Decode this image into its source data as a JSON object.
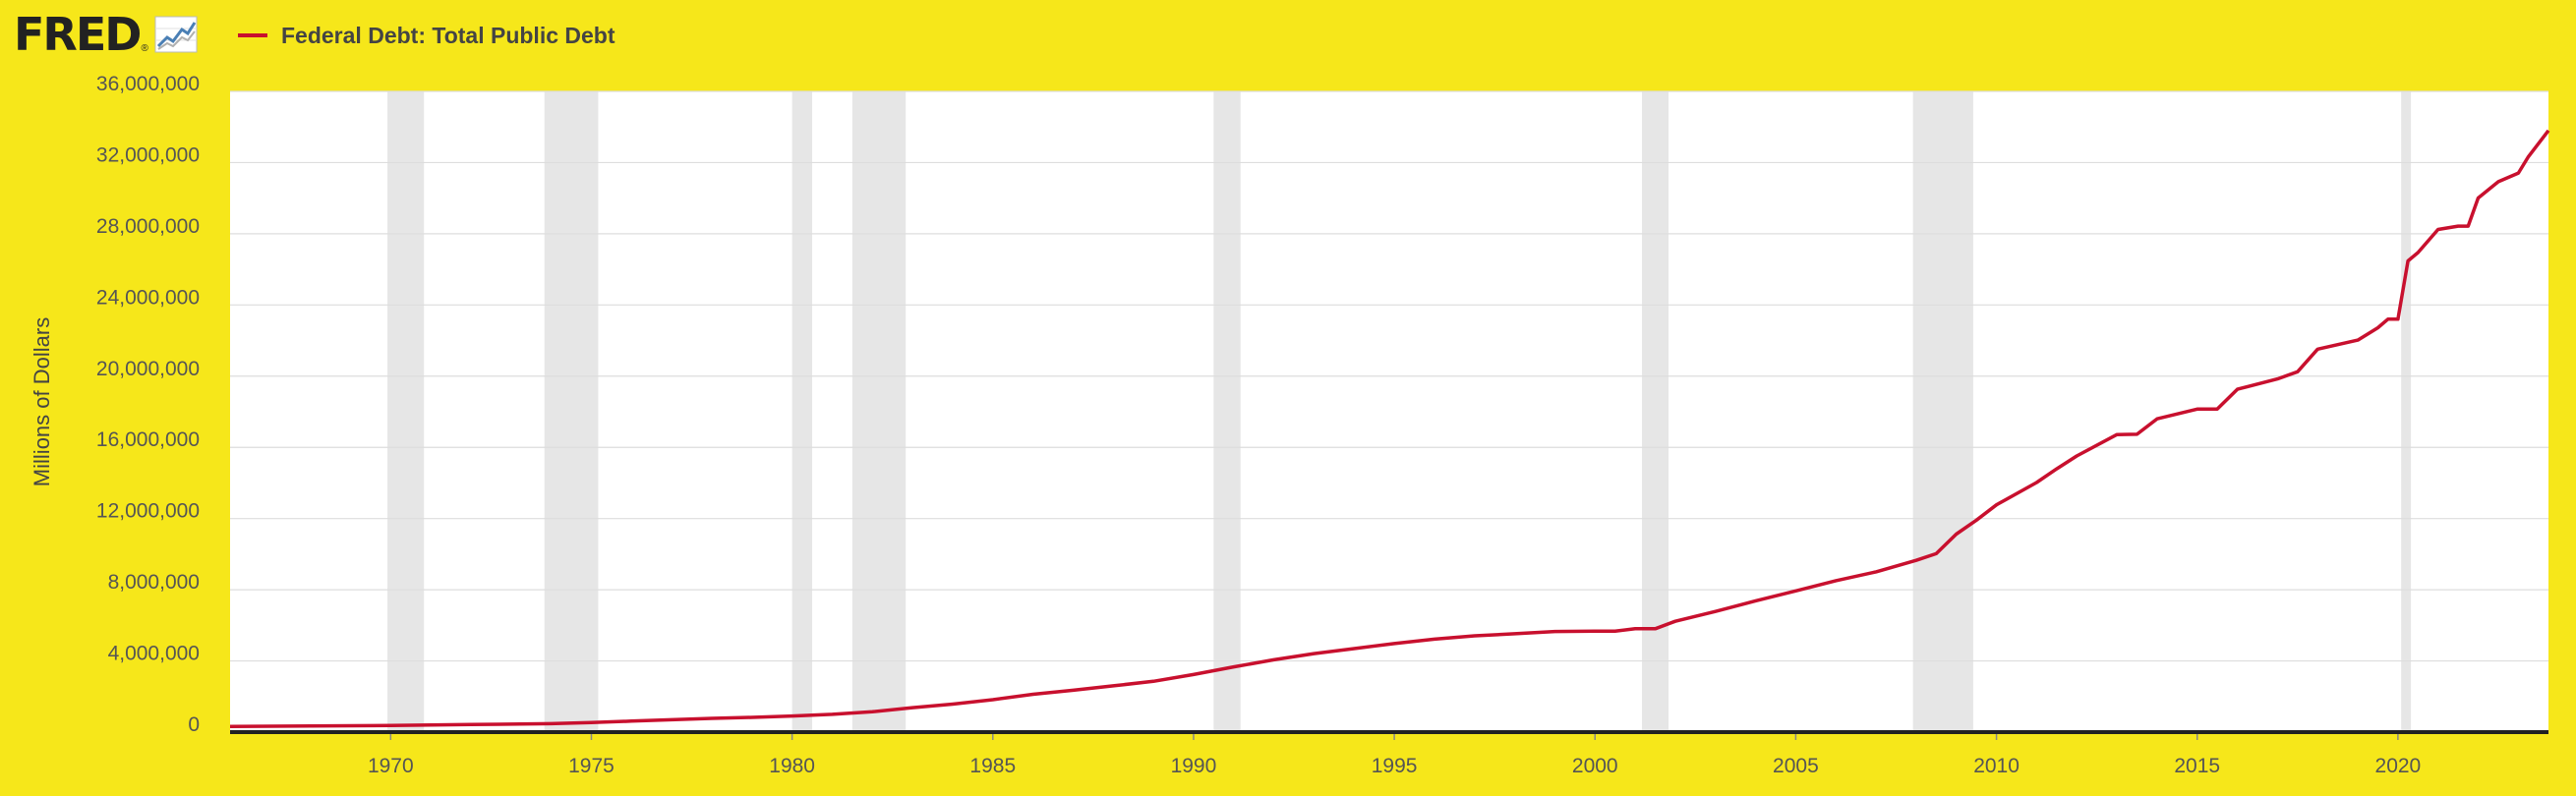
{
  "brand": {
    "logo_text": "FRED",
    "registered_mark": "®",
    "logo_icon": "chart-line-icon"
  },
  "legend": {
    "label": "Federal Debt: Total Public Debt",
    "color": "#c8102e"
  },
  "colors": {
    "background": "#f6e71a",
    "plot": "#ffffff",
    "gridline": "#dddddd",
    "recession": "#e6e6e6",
    "axis": "#222222"
  },
  "chart_data": {
    "type": "line",
    "title": "",
    "xlabel": "",
    "ylabel": "Millions of Dollars",
    "xlim": [
      1966.0,
      2023.75
    ],
    "ylim": [
      0,
      36000000
    ],
    "grid": true,
    "legend_position": "top-left",
    "x_ticks": [
      1970,
      1975,
      1980,
      1985,
      1990,
      1995,
      2000,
      2005,
      2010,
      2015,
      2020
    ],
    "y_ticks": [
      0,
      4000000,
      8000000,
      12000000,
      16000000,
      20000000,
      24000000,
      28000000,
      32000000,
      36000000
    ],
    "y_tick_labels": [
      "0",
      "4,000,000",
      "8,000,000",
      "12,000,000",
      "16,000,000",
      "20,000,000",
      "24,000,000",
      "28,000,000",
      "32,000,000",
      "36,000,000"
    ],
    "recessions": [
      [
        1969.92,
        1970.83
      ],
      [
        1973.83,
        1975.17
      ],
      [
        1980.0,
        1980.5
      ],
      [
        1981.5,
        1982.83
      ],
      [
        1990.5,
        1991.17
      ],
      [
        2001.17,
        2001.83
      ],
      [
        2007.92,
        2009.42
      ],
      [
        2020.08,
        2020.25
      ]
    ],
    "series": [
      {
        "name": "Federal Debt: Total Public Debt",
        "color": "#c8102e",
        "x": [
          1966.0,
          1968.0,
          1970.0,
          1972.0,
          1974.0,
          1975.0,
          1976.0,
          1977.0,
          1978.0,
          1979.0,
          1980.0,
          1981.0,
          1982.0,
          1983.0,
          1984.0,
          1985.0,
          1986.0,
          1987.0,
          1988.0,
          1989.0,
          1990.0,
          1991.0,
          1992.0,
          1993.0,
          1994.0,
          1995.0,
          1996.0,
          1997.0,
          1998.0,
          1999.0,
          2000.0,
          2000.5,
          2001.0,
          2001.5,
          2002.0,
          2003.0,
          2004.0,
          2005.0,
          2006.0,
          2007.0,
          2008.0,
          2008.5,
          2009.0,
          2009.5,
          2010.0,
          2011.0,
          2011.5,
          2012.0,
          2013.0,
          2013.5,
          2014.0,
          2015.0,
          2015.5,
          2016.0,
          2017.0,
          2017.5,
          2018.0,
          2019.0,
          2019.5,
          2019.75,
          2020.0,
          2020.25,
          2020.5,
          2021.0,
          2021.5,
          2021.75,
          2022.0,
          2022.5,
          2023.0,
          2023.25,
          2023.75
        ],
        "y": [
          320000,
          345000,
          370000,
          427000,
          475000,
          533000,
          620000,
          698000,
          771000,
          827000,
          907000,
          998000,
          1142000,
          1377000,
          1572000,
          1823000,
          2125000,
          2350000,
          2602000,
          2857000,
          3233000,
          3665000,
          4065000,
          4411000,
          4693000,
          4974000,
          5225000,
          5413000,
          5526000,
          5656000,
          5674000,
          5674000,
          5807000,
          5807000,
          6228000,
          6783000,
          7379000,
          7933000,
          8507000,
          9008000,
          9654000,
          10025000,
          11128000,
          11910000,
          12773000,
          14025000,
          14790000,
          15516000,
          16719000,
          16738000,
          17600000,
          18151000,
          18151000,
          19265000,
          19845000,
          20245000,
          21516000,
          22027000,
          22719000,
          23201000,
          23201000,
          26477000,
          26945000,
          28241000,
          28430000,
          28430000,
          30008000,
          30928000,
          31410000,
          32332000,
          33800000
        ]
      }
    ]
  }
}
